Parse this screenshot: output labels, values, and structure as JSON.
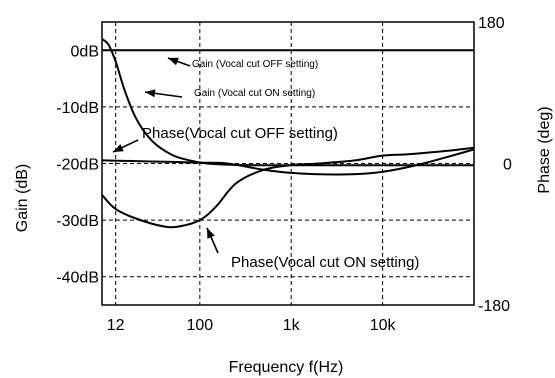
{
  "chart_data": {
    "type": "line",
    "xlabel": "Frequency  f(Hz)",
    "ylabel_left": "Gain (dB)",
    "ylabel_right": "Phase (deg)",
    "x_scale": "log",
    "xlim": [
      8.5,
      100000
    ],
    "ylim_left": [
      -45,
      5
    ],
    "ylim_right": [
      -180,
      180
    ],
    "grid": true,
    "x_ticks": [
      {
        "value": 12,
        "label": "12"
      },
      {
        "value": 100,
        "label": "100"
      },
      {
        "value": 1000,
        "label": "1k"
      },
      {
        "value": 10000,
        "label": "10k"
      }
    ],
    "y_ticks_left": [
      {
        "value": 0,
        "label": "0dB"
      },
      {
        "value": -10,
        "label": "-10dB"
      },
      {
        "value": -20,
        "label": "-20dB"
      },
      {
        "value": -30,
        "label": "-30dB"
      },
      {
        "value": -40,
        "label": "-40dB"
      }
    ],
    "y_ticks_right": [
      {
        "value": 180,
        "label": "180"
      },
      {
        "value": 0,
        "label": "0"
      },
      {
        "value": -180,
        "label": "-180"
      }
    ],
    "series": [
      {
        "axis": "left",
        "label_ref": "gain_off",
        "x": [
          8.5,
          100000
        ],
        "y": [
          0,
          0
        ]
      },
      {
        "axis": "left",
        "label_ref": "gain_on",
        "x": [
          8.5,
          10,
          12,
          15,
          20,
          30,
          50,
          80,
          120,
          200,
          400,
          1000,
          3000,
          10000,
          30000,
          100000
        ],
        "y": [
          2,
          1,
          -2,
          -7,
          -12,
          -16,
          -18.5,
          -19.5,
          -20,
          -20.2,
          -20.3,
          -20.3,
          -20.3,
          -20.3,
          -20.3,
          -20.3
        ]
      },
      {
        "axis": "right",
        "label_ref": "phase_off",
        "x": [
          8.5,
          20,
          50,
          100,
          200,
          500,
          1000,
          3000,
          8000,
          20000,
          50000,
          100000
        ],
        "y": [
          4,
          3,
          2,
          1,
          0,
          -8,
          -12,
          -14,
          -12,
          -4,
          8,
          18
        ]
      },
      {
        "axis": "right",
        "label_ref": "phase_on",
        "x": [
          8.5,
          12,
          20,
          40,
          60,
          100,
          150,
          250,
          500,
          1000,
          2000,
          5000,
          10000,
          20000,
          50000,
          100000
        ],
        "y": [
          -40,
          -58,
          -70,
          -80,
          -80,
          -72,
          -55,
          -25,
          -8,
          -2,
          0,
          4,
          10,
          12,
          16,
          20
        ]
      }
    ],
    "annotations": {
      "gain_off": "Gain (Vocal cut OFF setting)",
      "gain_on": "Gain (Vocal cut ON setting)",
      "phase_off": "Phase(Vocal cut OFF setting)",
      "phase_on": "Phase(Vocal cut ON setting)"
    }
  }
}
